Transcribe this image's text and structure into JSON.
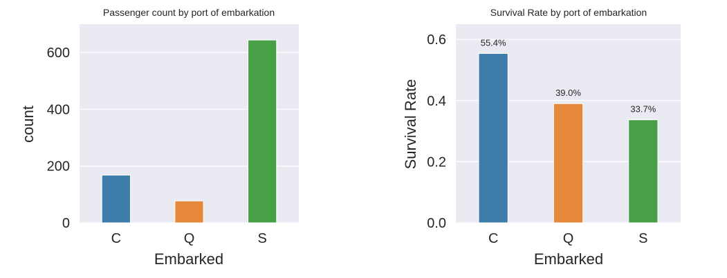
{
  "colors": {
    "plot_bg": "#EAEAF2",
    "grid": "#FFFFFF",
    "C": "#3E7CAA",
    "Q": "#E5883A",
    "S": "#47A046"
  },
  "chart_data": [
    {
      "type": "bar",
      "title": "Passenger count by port of embarkation",
      "xlabel": "Embarked",
      "ylabel": "count",
      "categories": [
        "C",
        "Q",
        "S"
      ],
      "values": [
        168,
        77,
        644
      ],
      "ylim": [
        0,
        700
      ],
      "yticks": [
        0,
        200,
        400,
        600
      ],
      "ytick_labels": [
        "0",
        "200",
        "400",
        "600"
      ],
      "grid": true,
      "data_labels": []
    },
    {
      "type": "bar",
      "title": "Survival Rate by port of embarkation",
      "xlabel": "Embarked",
      "ylabel": "Survival Rate",
      "categories": [
        "C",
        "Q",
        "S"
      ],
      "values": [
        0.554,
        0.39,
        0.337
      ],
      "ylim": [
        0,
        0.65
      ],
      "yticks": [
        0.0,
        0.2,
        0.4,
        0.6
      ],
      "ytick_labels": [
        "0.0",
        "0.2",
        "0.4",
        "0.6"
      ],
      "grid": true,
      "data_labels": [
        "55.4%",
        "39.0%",
        "33.7%"
      ]
    }
  ]
}
